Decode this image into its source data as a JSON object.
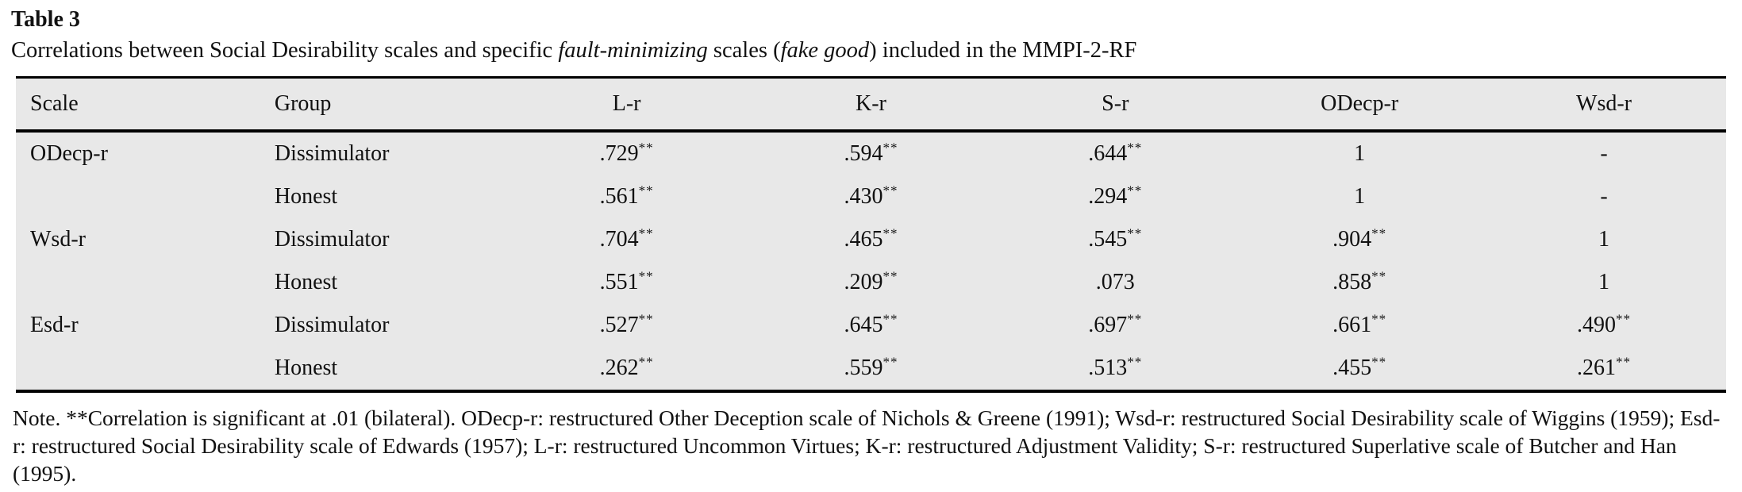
{
  "caption": {
    "label": "Table 3",
    "p1": "Correlations between Social Desirability scales and specific ",
    "i1": "fault-minimizing",
    "p2": " scales (",
    "i2": "fake good",
    "p3": ") included in the MMPI-2-RF"
  },
  "table": {
    "headers": [
      "Scale",
      "Group",
      "L-r",
      "K-r",
      "S-r",
      "ODecp-r",
      "Wsd-r"
    ],
    "rows": [
      {
        "scale": "ODecp-r",
        "group": "Dissimulator",
        "values": [
          {
            "v": ".729",
            "sig": "**"
          },
          {
            "v": ".594",
            "sig": "**"
          },
          {
            "v": ".644",
            "sig": "**"
          },
          {
            "v": "1",
            "sig": ""
          },
          {
            "v": "-",
            "sig": ""
          }
        ]
      },
      {
        "scale": "",
        "group": "Honest",
        "values": [
          {
            "v": ".561",
            "sig": "**"
          },
          {
            "v": ".430",
            "sig": "**"
          },
          {
            "v": ".294",
            "sig": "**"
          },
          {
            "v": "1",
            "sig": ""
          },
          {
            "v": "-",
            "sig": ""
          }
        ]
      },
      {
        "scale": "Wsd-r",
        "group": "Dissimulator",
        "values": [
          {
            "v": ".704",
            "sig": "**"
          },
          {
            "v": ".465",
            "sig": "**"
          },
          {
            "v": ".545",
            "sig": "**"
          },
          {
            "v": ".904",
            "sig": "**"
          },
          {
            "v": "1",
            "sig": ""
          }
        ]
      },
      {
        "scale": "",
        "group": "Honest",
        "values": [
          {
            "v": ".551",
            "sig": "**"
          },
          {
            "v": ".209",
            "sig": "**"
          },
          {
            "v": ".073",
            "sig": ""
          },
          {
            "v": ".858",
            "sig": "**"
          },
          {
            "v": "1",
            "sig": ""
          }
        ]
      },
      {
        "scale": "Esd-r",
        "group": "Dissimulator",
        "values": [
          {
            "v": ".527",
            "sig": "**"
          },
          {
            "v": ".645",
            "sig": "**"
          },
          {
            "v": ".697",
            "sig": "**"
          },
          {
            "v": ".661",
            "sig": "**"
          },
          {
            "v": ".490",
            "sig": "**"
          }
        ]
      },
      {
        "scale": "",
        "group": "Honest",
        "values": [
          {
            "v": ".262",
            "sig": "**"
          },
          {
            "v": ".559",
            "sig": "**"
          },
          {
            "v": ".513",
            "sig": "**"
          },
          {
            "v": ".455",
            "sig": "**"
          },
          {
            "v": ".261",
            "sig": "**"
          }
        ]
      }
    ]
  },
  "note": {
    "text": "Note. **Correlation is significant at .01 (bilateral). ODecp-r: restructured Other Deception scale of Nichols & Greene (1991); Wsd-r: restructured Social Desirability scale of Wiggins (1959); Esd-r: restructured Social Desirability scale of Edwards (1957); L-r: restructured Uncommon Virtues; K-r: restructured Adjustment Validity; S-r: restructured Superlative scale of Butcher and Han (1995)."
  },
  "colors": {
    "table_background": "#e8e8e8",
    "rule": "#000000",
    "text": "#111111",
    "page_background": "#ffffff"
  }
}
